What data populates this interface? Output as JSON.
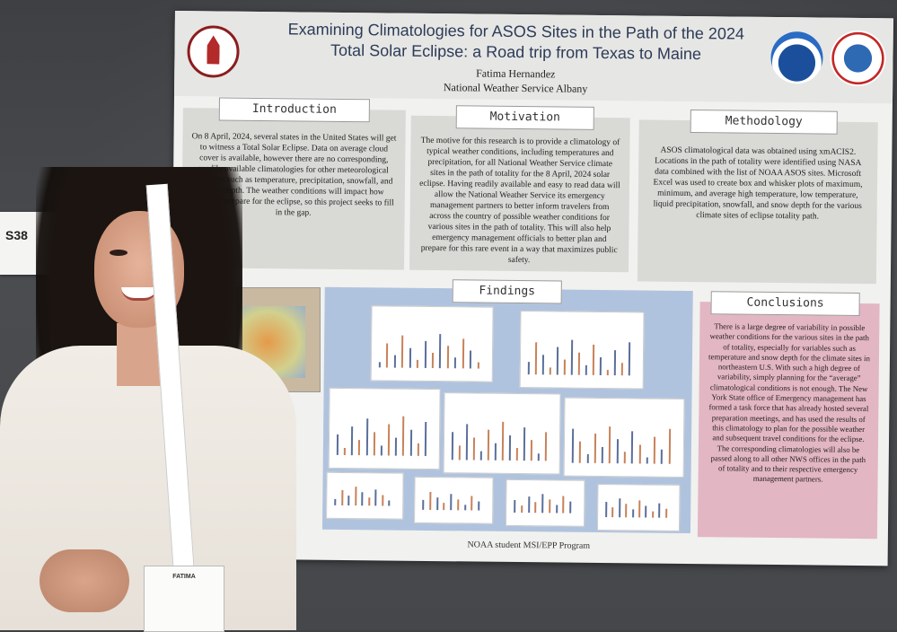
{
  "poster": {
    "title_line1": "Examining Climatologies for ASOS Sites in the Path of the 2024",
    "title_line2": "Total Solar Eclipse: a Road trip from Texas to Maine",
    "author": "Fatima Hernandez",
    "affiliation": "National Weather Service Albany",
    "sections": {
      "introduction": {
        "heading": "Introduction",
        "text": "On 8 April, 2024, several states in the United States will get to witness a Total Solar Eclipse. Data on average cloud cover is available, however there are no corresponding, readily available climatologies for other meteorological variables such as temperature, precipitation, snowfall, and snow depth. The weather conditions will impact how travelers prepare for the eclipse, so this project seeks to fill in the gap."
      },
      "motivation": {
        "heading": "Motivation",
        "text": "The motive for this research is to provide a climatology of typical weather conditions, including temperatures and precipitation, for all National Weather Service climate sites in the path of totality for the 8 April, 2024 solar eclipse. Having readily available and easy to read data will allow the National Weather Service its emergency management partners to better inform travelers from across the country of possible weather conditions for various sites in the path of totality. This will also help emergency management officials to better plan and prepare for this rare event in a way that maximizes public safety."
      },
      "methodology": {
        "heading": "Methodology",
        "text": "ASOS climatological data was obtained using xmACIS2. Locations in the path of totality were identified using NASA data combined with the list of NOAA ASOS sites. Microsoft Excel was used to create box and whisker plots of maximum, minimum, and average high temperature, low temperature, liquid precipitation, snowfall, and snow depth for the various climate sites of eclipse totality path."
      },
      "findings": {
        "heading": "Findings"
      },
      "conclusions": {
        "heading": "Conclusions",
        "text": "There is a large degree of variability in possible weather conditions for the various sites in the path of totality, especially for variables such as temperature and snow depth for the climate sites in northeastern U.S. With such a high degree of variability, simply planning for the “average” climatological conditions is not enough. The New York State office of Emergency management has formed a task force that has already hosted several preparation meetings, and has used the results of this climatology to plan for the possible weather and subsequent travel conditions for the eclipse. The corresponding climatologies will also be passed along to all other NWS offices in the path of totality and to their respective emergency management partners."
      }
    },
    "footer": "NOAA student MSI/EPP Program"
  },
  "side_card": {
    "code": "S38"
  },
  "badge": {
    "name": "FATIMA"
  },
  "colors": {
    "wall": "#45474a",
    "poster_bg": "#f1f1ef",
    "section_bg": "#d9d9d6",
    "findings_bg": "#b0c3de",
    "conclusions_bg": "#e3b6c3",
    "title_color": "#2c3b57"
  }
}
